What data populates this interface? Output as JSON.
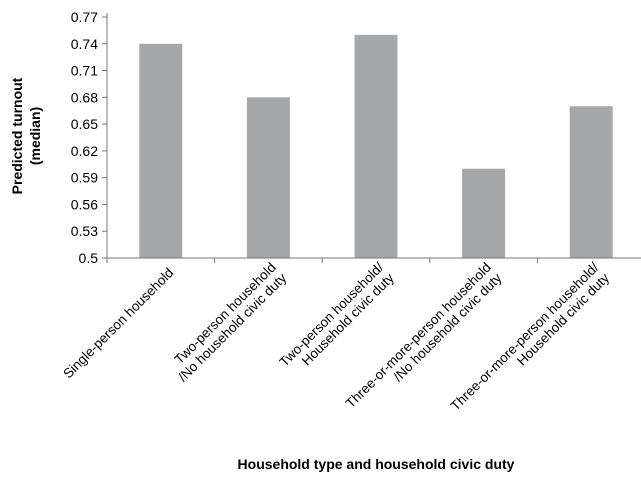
{
  "chart_data": {
    "type": "bar",
    "categories": [
      [
        "Single-person household"
      ],
      [
        "Two-person household",
        "/No household civic duty"
      ],
      [
        "Two-person household/",
        "Household civic duty"
      ],
      [
        "Three-or-more-person household",
        "/No household civic duty"
      ],
      [
        "Three-or-more-person household/",
        "Household civic duty"
      ]
    ],
    "values": [
      0.74,
      0.68,
      0.75,
      0.6,
      0.67
    ],
    "xlabel": "Household type and household civic duty",
    "ylabel": [
      "Predicted turnout",
      "(median)"
    ],
    "ylim": [
      0.5,
      0.77
    ],
    "yticks": [
      "0.5",
      "0.53",
      "0.56",
      "0.59",
      "0.62",
      "0.65",
      "0.68",
      "0.71",
      "0.74",
      "0.77"
    ],
    "grid": false,
    "legend": "none",
    "bar_color": "#a5a8ab",
    "axis_color": "#777777"
  }
}
